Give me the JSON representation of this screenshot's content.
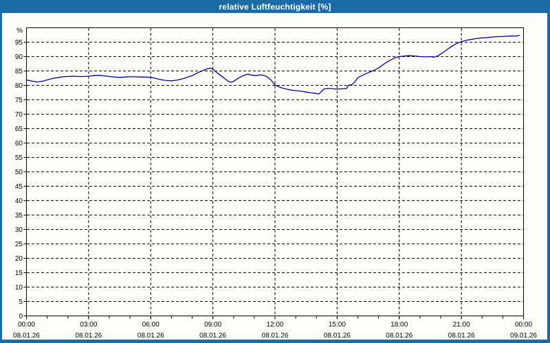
{
  "window": {
    "title": "relative Luftfeuchtigkeit [%]"
  },
  "colors": {
    "titlebar_bg": "#1c6aa6",
    "title_text": "#ffffff",
    "frame": "#1c6aa6",
    "plot_bg": "#fdfdfa",
    "axis": "#000000",
    "grid": "#000000",
    "line": "#0000aa"
  },
  "chart_data": {
    "type": "line",
    "title": "relative Luftfeuchtigkeit [%]",
    "ylabel": "%",
    "xlabel": "",
    "ylim": [
      0,
      100
    ],
    "y_ticks": {
      "min": 0,
      "max": 95,
      "step": 5
    },
    "xlim_hours": [
      0,
      24
    ],
    "x_minor_tick_step_hours": 1,
    "grid": "dashed",
    "legend_position": "none",
    "x_major_ticks": [
      {
        "hour": 0,
        "time": "00:00",
        "date": "08.01.26"
      },
      {
        "hour": 3,
        "time": "03:00",
        "date": "08.01.26"
      },
      {
        "hour": 6,
        "time": "06:00",
        "date": "08.01.26"
      },
      {
        "hour": 9,
        "time": "09:00",
        "date": "08.01.26"
      },
      {
        "hour": 12,
        "time": "12:00",
        "date": "08.01.26"
      },
      {
        "hour": 15,
        "time": "15:00",
        "date": "08.01.26"
      },
      {
        "hour": 18,
        "time": "18:00",
        "date": "08.01.26"
      },
      {
        "hour": 21,
        "time": "21:00",
        "date": "08.01.26"
      },
      {
        "hour": 24,
        "time": "00:00",
        "date": "09.01.26"
      }
    ],
    "series": [
      {
        "name": "relative Luftfeuchtigkeit",
        "unit": "%",
        "color": "#0000aa",
        "points": [
          [
            0.0,
            81.9
          ],
          [
            0.25,
            81.5
          ],
          [
            0.5,
            81.2
          ],
          [
            0.75,
            81.4
          ],
          [
            1.0,
            81.9
          ],
          [
            1.25,
            82.4
          ],
          [
            1.5,
            82.7
          ],
          [
            1.75,
            83.0
          ],
          [
            2.0,
            83.1
          ],
          [
            2.25,
            83.2
          ],
          [
            2.5,
            83.1
          ],
          [
            2.75,
            83.1
          ],
          [
            3.0,
            83.2
          ],
          [
            3.25,
            83.4
          ],
          [
            3.5,
            83.5
          ],
          [
            3.75,
            83.3
          ],
          [
            4.0,
            83.1
          ],
          [
            4.25,
            82.9
          ],
          [
            4.5,
            82.8
          ],
          [
            4.75,
            82.9
          ],
          [
            5.0,
            83.0
          ],
          [
            5.25,
            83.0
          ],
          [
            5.5,
            82.9
          ],
          [
            5.75,
            82.9
          ],
          [
            6.0,
            82.8
          ],
          [
            6.25,
            82.4
          ],
          [
            6.5,
            82.0
          ],
          [
            6.75,
            81.7
          ],
          [
            7.0,
            81.6
          ],
          [
            7.25,
            81.8
          ],
          [
            7.5,
            82.2
          ],
          [
            7.75,
            82.8
          ],
          [
            8.0,
            83.4
          ],
          [
            8.25,
            84.3
          ],
          [
            8.5,
            85.1
          ],
          [
            8.75,
            85.8
          ],
          [
            8.9,
            86.0
          ],
          [
            9.0,
            85.6
          ],
          [
            9.25,
            84.1
          ],
          [
            9.5,
            82.8
          ],
          [
            9.75,
            81.4
          ],
          [
            9.9,
            81.1
          ],
          [
            10.0,
            81.4
          ],
          [
            10.25,
            82.6
          ],
          [
            10.5,
            83.5
          ],
          [
            10.7,
            83.9
          ],
          [
            10.9,
            83.5
          ],
          [
            11.1,
            83.4
          ],
          [
            11.3,
            83.7
          ],
          [
            11.5,
            83.4
          ],
          [
            11.65,
            82.8
          ],
          [
            11.8,
            81.9
          ],
          [
            11.95,
            80.5
          ],
          [
            12.1,
            79.8
          ],
          [
            12.3,
            79.2
          ],
          [
            12.5,
            78.8
          ],
          [
            12.75,
            78.4
          ],
          [
            13.0,
            78.2
          ],
          [
            13.25,
            78.0
          ],
          [
            13.5,
            77.7
          ],
          [
            13.75,
            77.4
          ],
          [
            14.0,
            77.2
          ],
          [
            14.1,
            77.0
          ],
          [
            14.2,
            77.6
          ],
          [
            14.35,
            78.7
          ],
          [
            14.5,
            78.9
          ],
          [
            14.75,
            78.9
          ],
          [
            15.0,
            78.7
          ],
          [
            15.2,
            78.8
          ],
          [
            15.45,
            78.9
          ],
          [
            15.55,
            80.1
          ],
          [
            15.7,
            80.2
          ],
          [
            15.85,
            81.2
          ],
          [
            16.0,
            82.7
          ],
          [
            16.2,
            83.4
          ],
          [
            16.4,
            84.1
          ],
          [
            16.6,
            84.7
          ],
          [
            16.8,
            85.3
          ],
          [
            17.0,
            86.0
          ],
          [
            17.2,
            87.1
          ],
          [
            17.4,
            88.1
          ],
          [
            17.6,
            88.9
          ],
          [
            17.8,
            89.6
          ],
          [
            18.0,
            90.0
          ],
          [
            18.25,
            90.2
          ],
          [
            18.5,
            90.3
          ],
          [
            18.75,
            90.2
          ],
          [
            19.0,
            90.0
          ],
          [
            19.25,
            89.9
          ],
          [
            19.5,
            90.0
          ],
          [
            19.7,
            89.8
          ],
          [
            19.9,
            90.4
          ],
          [
            20.1,
            91.4
          ],
          [
            20.3,
            92.4
          ],
          [
            20.5,
            93.4
          ],
          [
            20.75,
            94.5
          ],
          [
            21.0,
            95.2
          ],
          [
            21.25,
            95.7
          ],
          [
            21.5,
            96.0
          ],
          [
            21.75,
            96.3
          ],
          [
            22.0,
            96.5
          ],
          [
            22.25,
            96.6
          ],
          [
            22.5,
            96.8
          ],
          [
            22.75,
            96.9
          ],
          [
            23.0,
            97.0
          ],
          [
            23.25,
            97.1
          ],
          [
            23.5,
            97.2
          ],
          [
            23.65,
            97.1
          ],
          [
            23.8,
            97.4
          ]
        ]
      }
    ]
  }
}
